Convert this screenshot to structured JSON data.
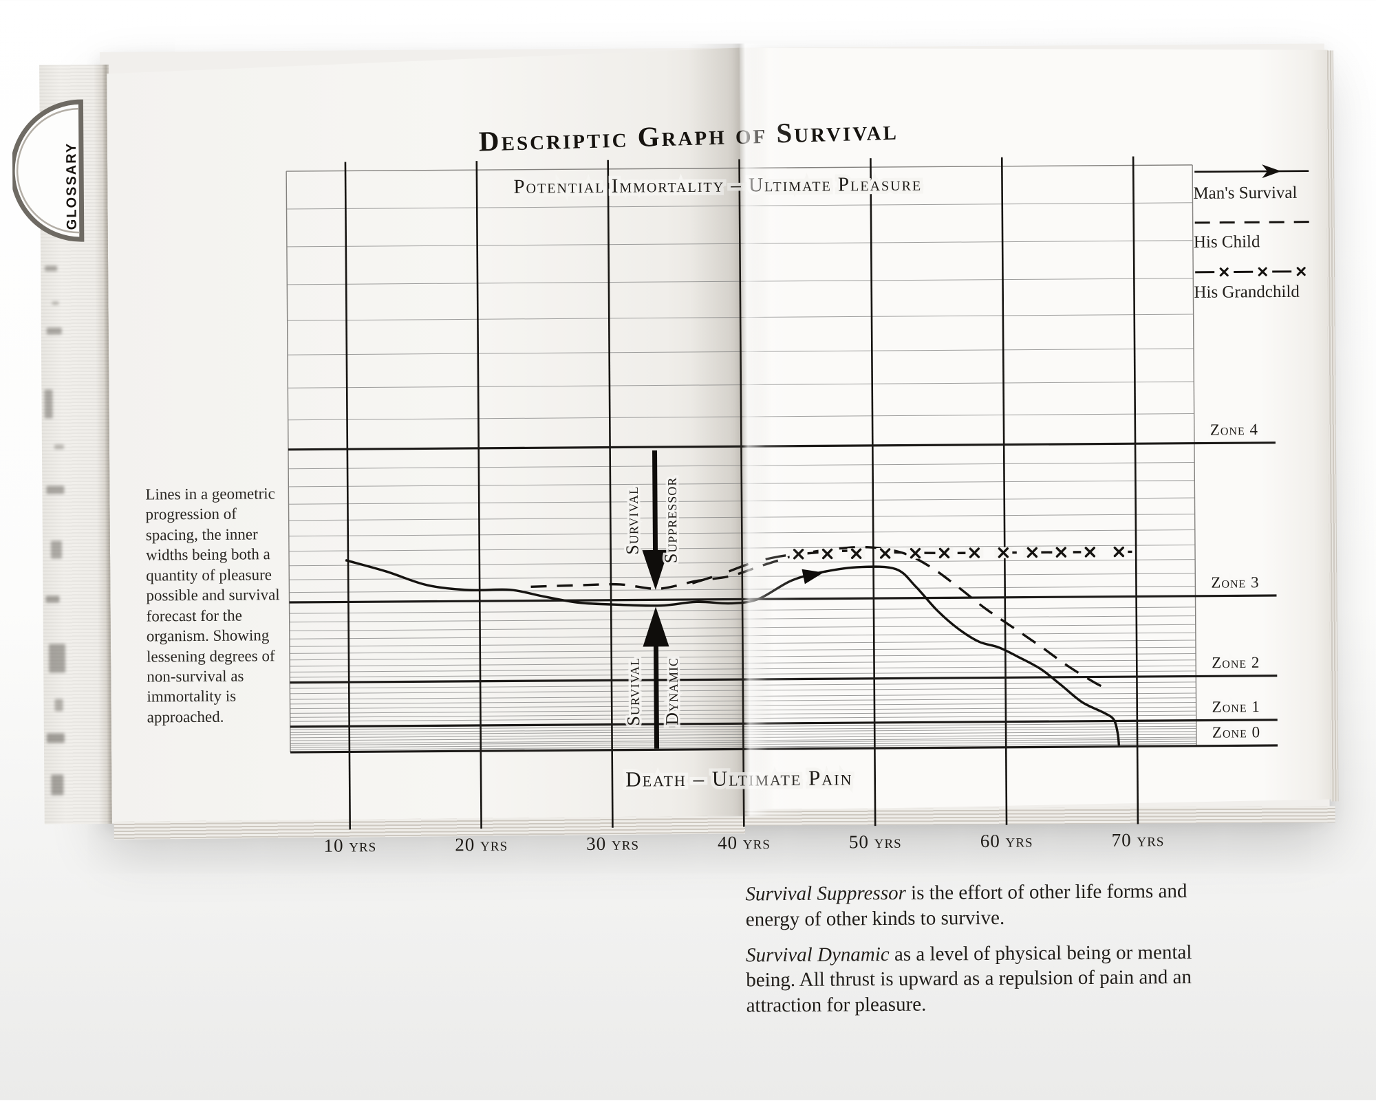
{
  "page": {
    "title": "Descriptic Graph of Survival",
    "glossary_tab": "GLOSSARY"
  },
  "legend": {
    "items": [
      {
        "label": "Man's Survival",
        "style": "solid-arrow"
      },
      {
        "label": "His Child",
        "style": "dashed"
      },
      {
        "label": "His Grandchild",
        "style": "dash-x"
      }
    ]
  },
  "annotations": {
    "left_note": "Lines in a geometric progression of spacing, the inner widths being both a quantity of pleasure possible and survival forecast for the organism. Showing lessening degrees of non-survival as immortality is approached.",
    "suppressor_note_lead": "Survival Suppressor",
    "suppressor_note_rest": " is the effort of other life forms and energy of other kinds to survive.",
    "dynamic_note_lead": "Survival Dynamic",
    "dynamic_note_rest": " as a level of physical being or mental being. All thrust is upward as a repulsion of pain and an attraction for pleasure."
  },
  "chart_data": {
    "type": "line",
    "title": "Descriptic Graph of Survival",
    "top_axis_label": "Potential Immortality – Ultimate Pleasure",
    "bottom_axis_label": "Death – Ultimate Pain",
    "x_tick_years": [
      10,
      20,
      30,
      40,
      50,
      60,
      70
    ],
    "x_tick_suffix": " yrs",
    "xlim": [
      5.5,
      74.5
    ],
    "ylim": [
      0,
      1
    ],
    "grid": true,
    "legend_position": "top-right",
    "top_border_level": 1.0,
    "zone_lines": [
      {
        "label": "Zone 4",
        "level": 0.521
      },
      {
        "label": "Zone 3",
        "level": 0.258
      },
      {
        "label": "Zone 2",
        "level": 0.12
      },
      {
        "label": "Zone 1",
        "level": 0.044
      },
      {
        "label": "Zone 0",
        "level": 0.0
      }
    ],
    "minor_levels": [
      0.935,
      0.87,
      0.805,
      0.743,
      0.684,
      0.627,
      0.572,
      0.488,
      0.457,
      0.427,
      0.399,
      0.372,
      0.346,
      0.321,
      0.297,
      0.275,
      0.239,
      0.224,
      0.209,
      0.195,
      0.182,
      0.17,
      0.159,
      0.148,
      0.138,
      0.129,
      0.11,
      0.101,
      0.091,
      0.083,
      0.075,
      0.067,
      0.06,
      0.053,
      0.039,
      0.034,
      0.03,
      0.025,
      0.02,
      0.015,
      0.012,
      0.008,
      0.004
    ],
    "series": [
      {
        "name": "Man's Survival",
        "style": "solid",
        "arrow": {
          "year": 46.2,
          "level": 0.303,
          "angle_deg": -11
        },
        "points": [
          [
            9.8,
            0.33
          ],
          [
            12.9,
            0.31
          ],
          [
            16.0,
            0.286
          ],
          [
            19.2,
            0.277
          ],
          [
            22.3,
            0.277
          ],
          [
            24.9,
            0.265
          ],
          [
            27.6,
            0.254
          ],
          [
            30.7,
            0.25
          ],
          [
            33.8,
            0.248
          ],
          [
            36.5,
            0.254
          ],
          [
            39.1,
            0.251
          ],
          [
            41.2,
            0.258
          ],
          [
            43.8,
            0.29
          ],
          [
            46.4,
            0.305
          ],
          [
            49.0,
            0.312
          ],
          [
            51.7,
            0.308
          ],
          [
            53.2,
            0.278
          ],
          [
            54.8,
            0.237
          ],
          [
            56.4,
            0.205
          ],
          [
            58.0,
            0.182
          ],
          [
            59.5,
            0.172
          ],
          [
            61.1,
            0.154
          ],
          [
            62.7,
            0.134
          ],
          [
            64.2,
            0.107
          ],
          [
            65.8,
            0.077
          ],
          [
            67.4,
            0.059
          ],
          [
            68.2,
            0.047
          ],
          [
            68.5,
            0.024
          ],
          [
            68.6,
            0.002
          ]
        ]
      },
      {
        "name": "His Child",
        "style": "dashed",
        "points": [
          [
            23.9,
            0.282
          ],
          [
            27.6,
            0.284
          ],
          [
            30.7,
            0.285
          ],
          [
            33.6,
            0.277
          ],
          [
            36.5,
            0.29
          ],
          [
            39.1,
            0.298
          ],
          [
            41.7,
            0.317
          ],
          [
            44.3,
            0.334
          ],
          [
            46.9,
            0.343
          ],
          [
            49.6,
            0.346
          ],
          [
            52.2,
            0.336
          ],
          [
            54.3,
            0.312
          ],
          [
            56.4,
            0.277
          ],
          [
            58.5,
            0.239
          ],
          [
            60.6,
            0.206
          ],
          [
            62.7,
            0.173
          ],
          [
            64.7,
            0.14
          ],
          [
            66.8,
            0.11
          ],
          [
            67.8,
            0.099
          ]
        ]
      },
      {
        "name": "His Grandchild",
        "style": "dash-x",
        "marks_level": 0.335,
        "marks_years": [
          44.3,
          46.5,
          48.7,
          50.9,
          53.2,
          55.4,
          57.7,
          59.9,
          62.1,
          64.3,
          66.5,
          68.7
        ],
        "points": [
          [
            36.2,
            0.286
          ],
          [
            38.6,
            0.303
          ],
          [
            40.7,
            0.32
          ],
          [
            42.8,
            0.331
          ],
          [
            44.9,
            0.336
          ],
          [
            48.0,
            0.34
          ],
          [
            51.2,
            0.337
          ],
          [
            55.0,
            0.335
          ],
          [
            60.0,
            0.335
          ],
          [
            65.0,
            0.335
          ],
          [
            69.7,
            0.335
          ]
        ]
      }
    ],
    "suppressor_arrow": {
      "x_year": 33.4,
      "from_level": 0.515,
      "to_level": 0.275,
      "label_left": "Survival",
      "label_right": "Suppressor",
      "direction": "down"
    },
    "dynamic_arrow": {
      "x_year": 33.4,
      "from_level": 0.002,
      "to_level": 0.246,
      "label_left": "Survival",
      "label_right": "Dynamic",
      "direction": "up"
    }
  }
}
